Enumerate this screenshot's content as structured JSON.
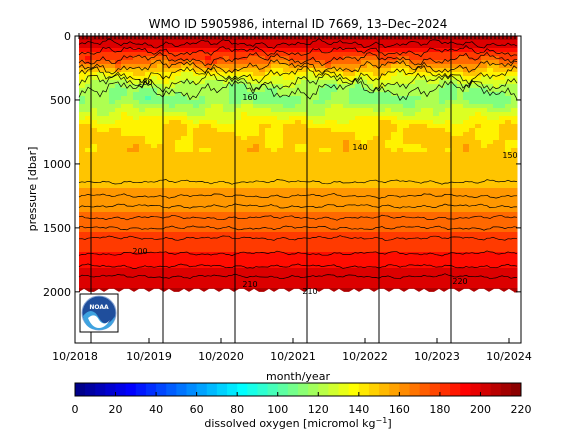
{
  "chart_data": {
    "type": "heatmap",
    "title": "WMO ID 5905986, internal ID 7669, 13–Dec–2024",
    "xlabel": "month/year",
    "ylabel": "pressure [dbar]",
    "x_ticks": [
      "10/2018",
      "10/2019",
      "10/2020",
      "10/2021",
      "10/2022",
      "10/2023",
      "10/2024"
    ],
    "y_ticks": [
      0,
      500,
      1000,
      1500,
      2000
    ],
    "ylim": [
      2400,
      0
    ],
    "y_reversed": true,
    "data_max_pressure": 2000,
    "colorbar": {
      "label": "dissolved oxygen [micromol kg⁻¹]",
      "label_base": "dissolved oxygen [micromol kg",
      "label_sup": "−1",
      "label_end": "]",
      "ticks": [
        0,
        20,
        40,
        60,
        80,
        100,
        120,
        140,
        160,
        180,
        200,
        220
      ],
      "range": [
        0,
        220
      ],
      "colormap": "jet"
    },
    "profile": {
      "pressure": [
        0,
        80,
        200,
        300,
        400,
        500,
        600,
        700,
        800,
        1000,
        1100,
        1200,
        1300,
        1400,
        1500,
        1600,
        1700,
        1800,
        1900,
        2000
      ],
      "oxygen": [
        212,
        200,
        170,
        140,
        118,
        112,
        128,
        143,
        148,
        148,
        150,
        156,
        162,
        166,
        172,
        180,
        186,
        194,
        200,
        206
      ]
    },
    "contour_labels": [
      "180",
      "160",
      "140",
      "150",
      "200",
      "210",
      "220"
    ],
    "logo": "NOAA"
  }
}
